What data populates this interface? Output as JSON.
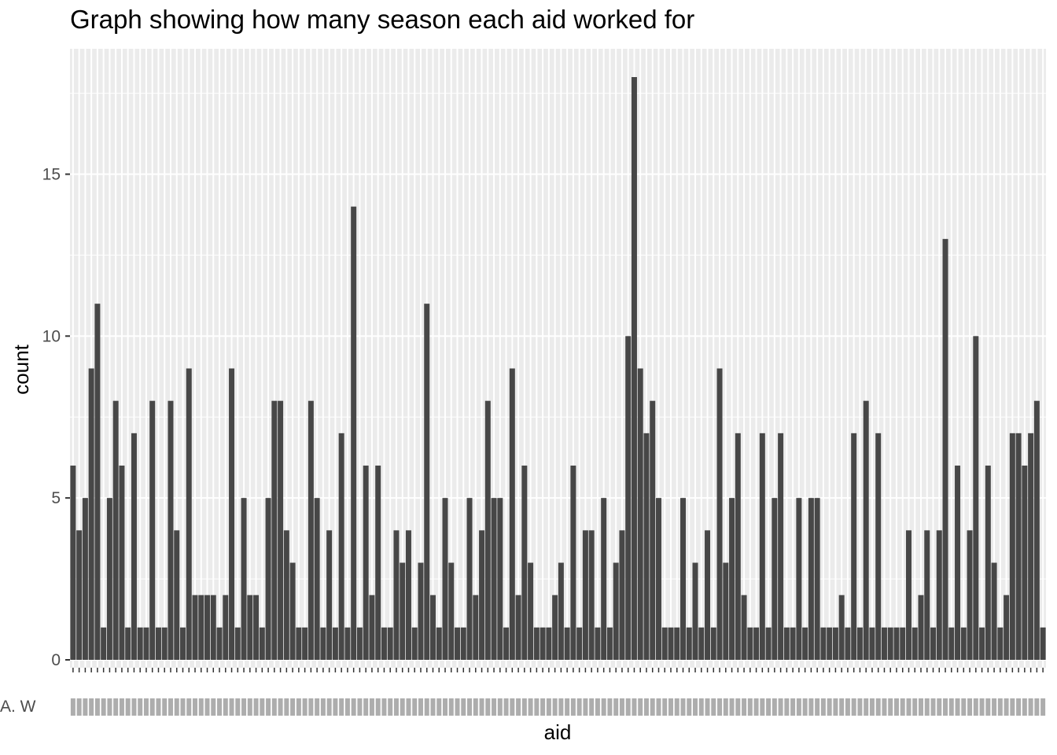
{
  "chart_data": {
    "type": "bar",
    "title": "Graph showing how many season each aid worked for",
    "xlabel": "aid",
    "ylabel": "count",
    "ylim": [
      0,
      18.9
    ],
    "yticks": [
      0,
      5,
      10,
      15
    ],
    "x_tick_labels_overlapping": "A. W",
    "grid": true,
    "background": "#ebebeb",
    "bar_color": "#474747",
    "values": [
      6,
      4,
      5,
      9,
      11,
      1,
      5,
      8,
      6,
      1,
      7,
      1,
      1,
      8,
      1,
      1,
      8,
      4,
      1,
      9,
      2,
      2,
      2,
      2,
      1,
      2,
      9,
      1,
      5,
      2,
      2,
      1,
      5,
      8,
      8,
      4,
      3,
      1,
      1,
      8,
      5,
      1,
      4,
      1,
      7,
      1,
      14,
      1,
      6,
      2,
      6,
      1,
      1,
      4,
      3,
      4,
      1,
      3,
      11,
      2,
      1,
      5,
      3,
      1,
      1,
      5,
      2,
      4,
      8,
      5,
      5,
      1,
      9,
      2,
      6,
      3,
      1,
      1,
      1,
      2,
      3,
      1,
      6,
      1,
      4,
      4,
      1,
      5,
      1,
      3,
      4,
      10,
      18,
      9,
      7,
      8,
      5,
      1,
      1,
      1,
      5,
      1,
      3,
      1,
      4,
      1,
      9,
      3,
      5,
      7,
      2,
      1,
      1,
      7,
      1,
      5,
      7,
      1,
      1,
      5,
      1,
      5,
      5,
      1,
      1,
      1,
      2,
      1,
      7,
      1,
      8,
      1,
      7,
      1,
      1,
      1,
      1,
      4,
      1,
      2,
      4,
      1,
      4,
      13,
      1,
      6,
      1,
      4,
      10,
      1,
      6,
      3,
      1,
      2,
      7,
      7,
      6,
      7,
      8,
      1
    ]
  }
}
